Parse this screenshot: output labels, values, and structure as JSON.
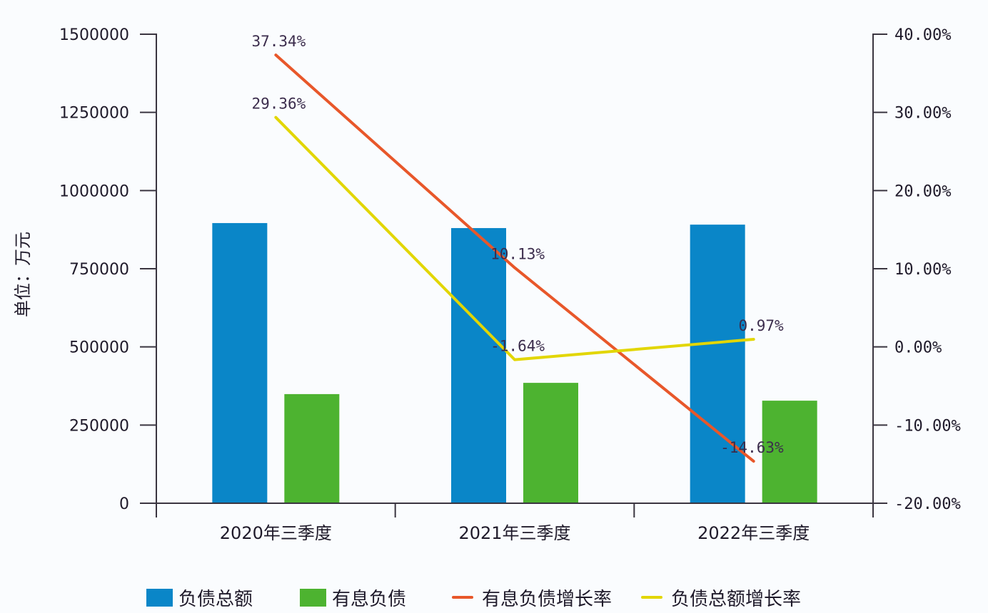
{
  "chart_data": {
    "type": "bar",
    "title": "",
    "xlabel": "",
    "ylabel": "单位：万元",
    "categories": [
      "2020年三季度",
      "2021年三季度",
      "2022年三季度"
    ],
    "series": [
      {
        "name": "负债总额",
        "type": "bar",
        "axis": "left",
        "color": "#0a86c8",
        "values": [
          896000,
          880000,
          891000
        ]
      },
      {
        "name": "有息负债",
        "type": "bar",
        "axis": "left",
        "color": "#4db330",
        "values": [
          349000,
          385000,
          328000
        ]
      },
      {
        "name": "有息负债增长率",
        "type": "line",
        "axis": "right",
        "color": "#e8572a",
        "values": [
          37.34,
          10.13,
          -14.63
        ],
        "labels": [
          "37.34%",
          "10.13%",
          "-14.63%"
        ]
      },
      {
        "name": "负债总额增长率",
        "type": "line",
        "axis": "right",
        "color": "#e2d600",
        "values": [
          29.36,
          -1.64,
          0.97
        ],
        "labels": [
          "29.36%",
          "-1.64%",
          "0.97%"
        ]
      }
    ],
    "ylim": [
      0,
      1500000
    ],
    "y_ticks": [
      "0",
      "250000",
      "500000",
      "750000",
      "1000000",
      "1250000",
      "1500000"
    ],
    "y2lim": [
      -20,
      40
    ],
    "y2_ticks": [
      "-20.00%",
      "-10.00%",
      "0.00%",
      "10.00%",
      "20.00%",
      "30.00%",
      "40.00%"
    ],
    "grid": false,
    "legend_position": "bottom"
  },
  "legend": [
    {
      "label": "负债总额",
      "kind": "swatch",
      "color": "#0a86c8"
    },
    {
      "label": "有息负债",
      "kind": "swatch",
      "color": "#4db330"
    },
    {
      "label": "有息负债增长率",
      "kind": "line",
      "color": "#e8572a"
    },
    {
      "label": "负债总额增长率",
      "kind": "line",
      "color": "#e2d600"
    }
  ]
}
